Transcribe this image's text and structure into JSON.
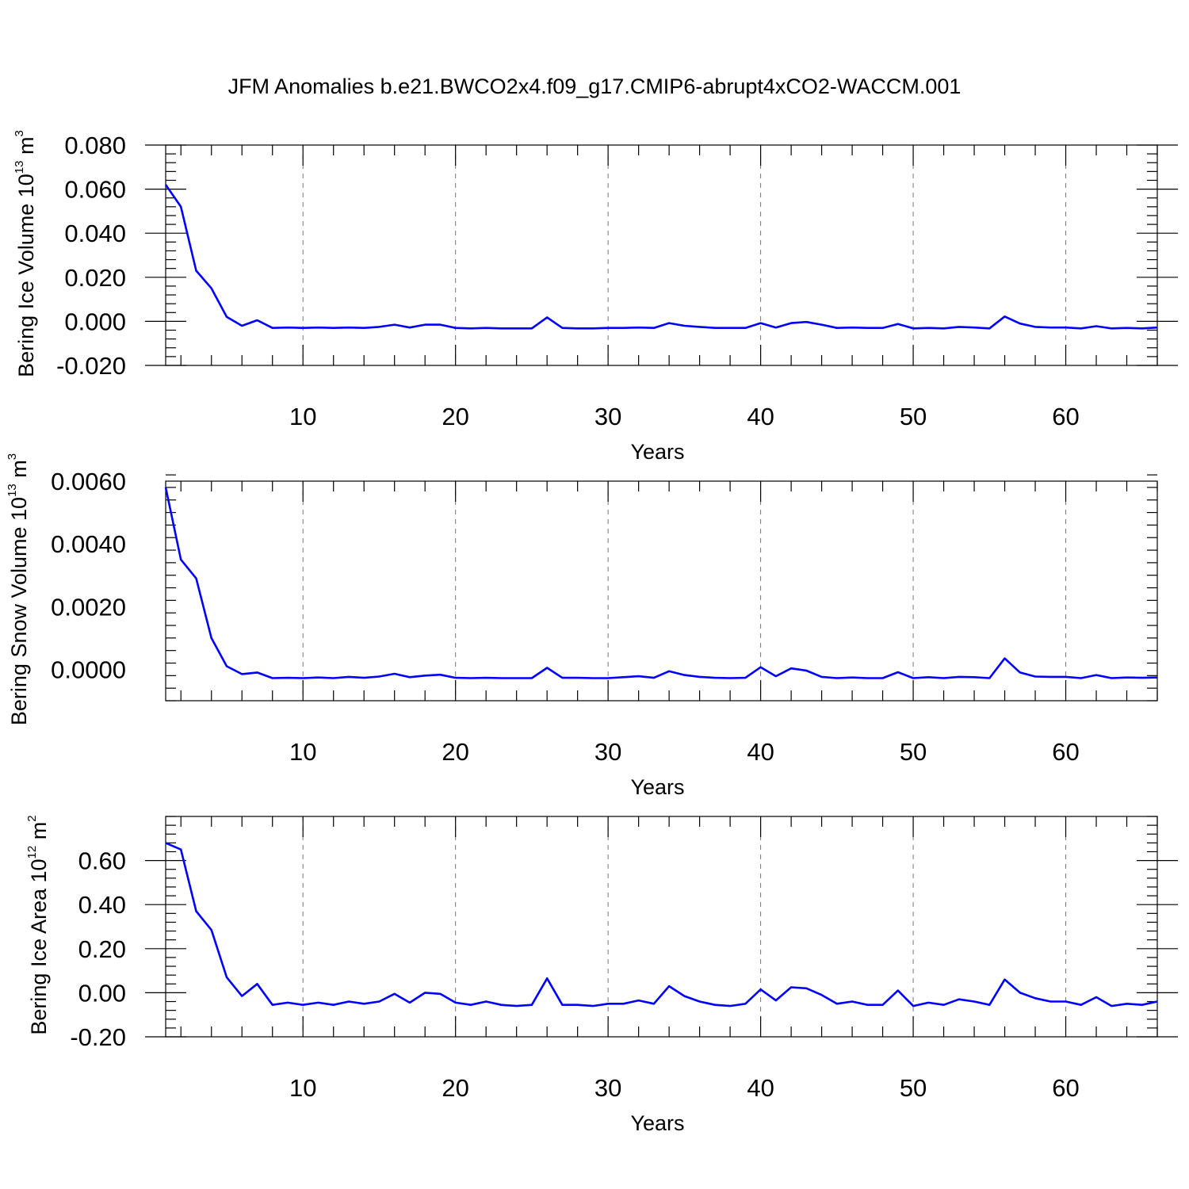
{
  "figure": {
    "title": "JFM Anomalies b.e21.BWCO2x4.f09_g17.CMIP6-abrupt4xCO2-WACCM.001",
    "line_color": "#0000ff"
  },
  "chart_data": [
    {
      "type": "line",
      "ylabel": {
        "text": "Bering Ice Volume 10",
        "sup": "13",
        "unit": " m",
        "unit_sup": "3"
      },
      "xlabel": "Years",
      "xlim": [
        1,
        66
      ],
      "ylim": [
        -0.02,
        0.08
      ],
      "xticks": [
        10,
        20,
        30,
        40,
        50,
        60
      ],
      "yticks": [
        -0.02,
        0.0,
        0.02,
        0.04,
        0.06,
        0.08
      ],
      "ytick_labels": [
        "-0.020",
        "0.000",
        "0.020",
        "0.040",
        "0.060",
        "0.080"
      ],
      "grid": "x-dashed",
      "x": [
        1,
        2,
        3,
        4,
        5,
        6,
        7,
        8,
        9,
        10,
        11,
        12,
        13,
        14,
        15,
        16,
        17,
        18,
        19,
        20,
        21,
        22,
        23,
        24,
        25,
        26,
        27,
        28,
        29,
        30,
        31,
        32,
        33,
        34,
        35,
        36,
        37,
        38,
        39,
        40,
        41,
        42,
        43,
        44,
        45,
        46,
        47,
        48,
        49,
        50,
        51,
        52,
        53,
        54,
        55,
        56,
        57,
        58,
        59,
        60,
        61,
        62,
        63,
        64,
        65,
        66
      ],
      "values": [
        0.062,
        0.052,
        0.023,
        0.015,
        0.002,
        -0.002,
        0.0005,
        -0.003,
        -0.0028,
        -0.003,
        -0.0028,
        -0.003,
        -0.0028,
        -0.003,
        -0.0025,
        -0.0015,
        -0.0028,
        -0.0015,
        -0.0015,
        -0.003,
        -0.0032,
        -0.003,
        -0.0032,
        -0.0032,
        -0.0032,
        0.0018,
        -0.003,
        -0.0032,
        -0.0032,
        -0.003,
        -0.003,
        -0.0028,
        -0.003,
        -0.0008,
        -0.002,
        -0.0025,
        -0.003,
        -0.003,
        -0.003,
        -0.0008,
        -0.0028,
        -0.0008,
        -0.0003,
        -0.0015,
        -0.003,
        -0.0028,
        -0.003,
        -0.003,
        -0.0012,
        -0.0032,
        -0.003,
        -0.0032,
        -0.0025,
        -0.0028,
        -0.0032,
        0.0022,
        -0.001,
        -0.0025,
        -0.0028,
        -0.0028,
        -0.0032,
        -0.0022,
        -0.0032,
        -0.003,
        -0.0032,
        -0.0028
      ]
    },
    {
      "type": "line",
      "ylabel": {
        "text": "Bering Snow Volume 10",
        "sup": "13",
        "unit": " m",
        "unit_sup": "3"
      },
      "xlabel": "Years",
      "xlim": [
        1,
        66
      ],
      "ylim": [
        -0.001,
        0.006
      ],
      "xticks": [
        10,
        20,
        30,
        40,
        50,
        60
      ],
      "yticks": [
        0.0,
        0.002,
        0.004,
        0.006
      ],
      "ytick_labels": [
        "0.0000",
        "0.0020",
        "0.0040",
        "0.0060"
      ],
      "grid": "x-dashed",
      "x": [
        1,
        2,
        3,
        4,
        5,
        6,
        7,
        8,
        9,
        10,
        11,
        12,
        13,
        14,
        15,
        16,
        17,
        18,
        19,
        20,
        21,
        22,
        23,
        24,
        25,
        26,
        27,
        28,
        29,
        30,
        31,
        32,
        33,
        34,
        35,
        36,
        37,
        38,
        39,
        40,
        41,
        42,
        43,
        44,
        45,
        46,
        47,
        48,
        49,
        50,
        51,
        52,
        53,
        54,
        55,
        56,
        57,
        58,
        59,
        60,
        61,
        62,
        63,
        64,
        65,
        66
      ],
      "values": [
        0.0058,
        0.0035,
        0.0029,
        0.001,
        0.0001,
        -0.00015,
        -0.0001,
        -0.00028,
        -0.00027,
        -0.00028,
        -0.00026,
        -0.00028,
        -0.00024,
        -0.00027,
        -0.00023,
        -0.00014,
        -0.00025,
        -0.0002,
        -0.00017,
        -0.00027,
        -0.00028,
        -0.00027,
        -0.00028,
        -0.00028,
        -0.00028,
        5e-05,
        -0.00027,
        -0.00027,
        -0.00028,
        -0.00028,
        -0.00025,
        -0.00022,
        -0.00027,
        -6e-05,
        -0.00018,
        -0.00024,
        -0.00027,
        -0.00028,
        -0.00027,
        7e-05,
        -0.00022,
        3e-05,
        -4e-05,
        -0.00024,
        -0.00028,
        -0.00026,
        -0.00028,
        -0.00028,
        -9e-05,
        -0.00028,
        -0.00025,
        -0.00028,
        -0.00024,
        -0.00025,
        -0.00028,
        0.00035,
        -0.0001,
        -0.00023,
        -0.00024,
        -0.00024,
        -0.00028,
        -0.00018,
        -0.00028,
        -0.00026,
        -0.00027,
        -0.00026
      ]
    },
    {
      "type": "line",
      "ylabel": {
        "text": "Bering Ice Area 10",
        "sup": "12",
        "unit": " m",
        "unit_sup": "2"
      },
      "xlabel": "Years",
      "xlim": [
        1,
        66
      ],
      "ylim": [
        -0.2,
        0.8
      ],
      "xticks": [
        10,
        20,
        30,
        40,
        50,
        60
      ],
      "yticks": [
        -0.2,
        0.0,
        0.2,
        0.4,
        0.6
      ],
      "ytick_labels": [
        "-0.20",
        "0.00",
        "0.20",
        "0.40",
        "0.60"
      ],
      "grid": "x-dashed",
      "x": [
        1,
        2,
        3,
        4,
        5,
        6,
        7,
        8,
        9,
        10,
        11,
        12,
        13,
        14,
        15,
        16,
        17,
        18,
        19,
        20,
        21,
        22,
        23,
        24,
        25,
        26,
        27,
        28,
        29,
        30,
        31,
        32,
        33,
        34,
        35,
        36,
        37,
        38,
        39,
        40,
        41,
        42,
        43,
        44,
        45,
        46,
        47,
        48,
        49,
        50,
        51,
        52,
        53,
        54,
        55,
        56,
        57,
        58,
        59,
        60,
        61,
        62,
        63,
        64,
        65,
        66
      ],
      "values": [
        0.68,
        0.65,
        0.37,
        0.285,
        0.07,
        -0.015,
        0.04,
        -0.055,
        -0.045,
        -0.055,
        -0.045,
        -0.055,
        -0.04,
        -0.05,
        -0.04,
        -0.005,
        -0.045,
        0.0,
        -0.005,
        -0.045,
        -0.055,
        -0.04,
        -0.055,
        -0.06,
        -0.055,
        0.065,
        -0.055,
        -0.055,
        -0.06,
        -0.05,
        -0.05,
        -0.035,
        -0.05,
        0.03,
        -0.015,
        -0.04,
        -0.055,
        -0.06,
        -0.05,
        0.015,
        -0.035,
        0.025,
        0.02,
        -0.01,
        -0.05,
        -0.04,
        -0.055,
        -0.055,
        0.01,
        -0.06,
        -0.045,
        -0.055,
        -0.03,
        -0.04,
        -0.055,
        0.06,
        0.0,
        -0.025,
        -0.04,
        -0.04,
        -0.055,
        -0.02,
        -0.06,
        -0.05,
        -0.055,
        -0.04
      ]
    }
  ]
}
